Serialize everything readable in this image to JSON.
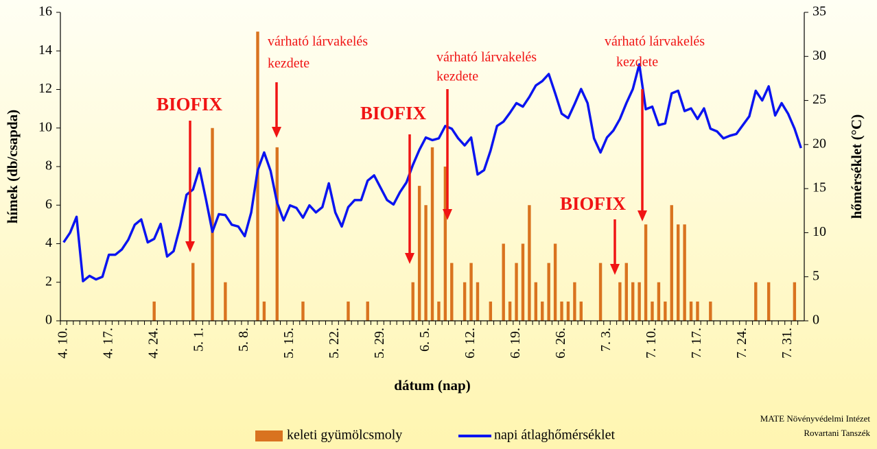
{
  "chart_data": {
    "type": "bar-line",
    "x_label": "dátum (nap)",
    "y_label": "hímek (db/csapda)",
    "y2_label": "hőmérséklet (°C)",
    "categories": [
      "4. 10.",
      null,
      null,
      null,
      null,
      null,
      null,
      "4. 17.",
      null,
      null,
      null,
      null,
      null,
      null,
      "4. 24.",
      null,
      null,
      null,
      null,
      null,
      null,
      "5. 1.",
      null,
      null,
      null,
      null,
      null,
      null,
      "5. 8.",
      null,
      null,
      null,
      null,
      null,
      null,
      "5. 15.",
      null,
      null,
      null,
      null,
      null,
      null,
      "5. 22.",
      null,
      null,
      null,
      null,
      null,
      null,
      "5. 29.",
      null,
      null,
      null,
      null,
      null,
      null,
      "6. 5.",
      null,
      null,
      null,
      null,
      null,
      null,
      "6. 12.",
      null,
      null,
      null,
      null,
      null,
      null,
      "6. 19.",
      null,
      null,
      null,
      null,
      null,
      null,
      "6. 26.",
      null,
      null,
      null,
      null,
      null,
      null,
      "7. 3.",
      null,
      null,
      null,
      null,
      null,
      null,
      "7. 10.",
      null,
      null,
      null,
      null,
      null,
      null,
      "7. 17.",
      null,
      null,
      null,
      null,
      null,
      null,
      "7. 24.",
      null,
      null,
      null,
      null,
      null,
      null,
      "7. 31.",
      null,
      null
    ],
    "series": [
      {
        "name": "keleti gyümölcsmoly",
        "type": "bar",
        "color": "#d9731f",
        "values": [
          0,
          0,
          0,
          0,
          0,
          0,
          0,
          0,
          0,
          0,
          0,
          0,
          0,
          0,
          1,
          0,
          0,
          0,
          0,
          0,
          3,
          0,
          0,
          10,
          0,
          2,
          0,
          0,
          0,
          0,
          15,
          1,
          0,
          9,
          0,
          0,
          0,
          1,
          0,
          0,
          0,
          0,
          0,
          0,
          1,
          0,
          0,
          1,
          0,
          0,
          0,
          0,
          0,
          0,
          2,
          7,
          6,
          9,
          1,
          8,
          3,
          0,
          2,
          3,
          2,
          0,
          1,
          0,
          4,
          1,
          3,
          4,
          6,
          2,
          1,
          3,
          4,
          1,
          1,
          2,
          1,
          0,
          0,
          3,
          0,
          0,
          2,
          3,
          2,
          2,
          5,
          1,
          2,
          1,
          6,
          5,
          5,
          1,
          1,
          0,
          1,
          0,
          0,
          0,
          0,
          0,
          0,
          2,
          0,
          2,
          0,
          0,
          0,
          2,
          0
        ]
      },
      {
        "name": "napi átlaghőmérséklet",
        "type": "line",
        "axis": "y2",
        "color": "#0a14f0",
        "values": [
          8.9,
          10,
          11.8,
          4.5,
          5.1,
          4.7,
          5,
          7.5,
          7.5,
          8.1,
          9.2,
          10.9,
          11.5,
          8.9,
          9.3,
          11,
          7.3,
          7.9,
          10.7,
          14.3,
          14.9,
          17.3,
          13.8,
          10.1,
          12.1,
          12,
          10.9,
          10.7,
          9.6,
          12.3,
          17.1,
          19.1,
          17,
          13.4,
          11.4,
          13.1,
          12.8,
          11.7,
          13.1,
          12.3,
          12.9,
          15.6,
          12.3,
          10.7,
          12.9,
          13.7,
          13.7,
          15.9,
          16.5,
          15.1,
          13.7,
          13.2,
          14.6,
          15.7,
          17.7,
          19.4,
          20.8,
          20.5,
          20.7,
          22.1,
          21.8,
          20.7,
          19.9,
          20.8,
          16.6,
          17.1,
          19.3,
          22.1,
          22.6,
          23.6,
          24.7,
          24.3,
          25.4,
          26.7,
          27.2,
          28,
          25.8,
          23.5,
          23,
          24.6,
          26.3,
          24.7,
          20.7,
          19.1,
          20.8,
          21.6,
          22.9,
          24.7,
          26.3,
          29.1,
          24,
          24.3,
          22.2,
          22.4,
          25.8,
          26.1,
          23.8,
          24.1,
          22.9,
          24.1,
          21.8,
          21.5,
          20.7,
          21,
          21.2,
          22.2,
          23.2,
          26.1,
          25,
          26.6,
          23.3,
          24.7,
          23.5,
          21.8,
          19.6
        ]
      }
    ],
    "ylim": [
      0,
      16
    ],
    "yticks": [
      0,
      2,
      4,
      6,
      8,
      10,
      12,
      14,
      16
    ],
    "y2lim": [
      0,
      35
    ],
    "y2ticks": [
      0,
      5,
      10,
      15,
      20,
      25,
      30,
      35
    ],
    "grid": false,
    "legend": "bottom",
    "annotations": [
      {
        "lines": [
          "BIOFIX"
        ]
      },
      {
        "lines": [
          "várható lárvakelés",
          "kezdete"
        ]
      },
      {
        "lines": [
          "BIOFIX"
        ]
      },
      {
        "lines": [
          "várható lárvakelés",
          "kezdete"
        ]
      },
      {
        "lines": [
          "BIOFIX"
        ]
      },
      {
        "lines": [
          "várható lárvakelés",
          "kezdete"
        ]
      }
    ],
    "source": [
      "MATE Növényvédelmi Intézet",
      "Rovartani Tanszék"
    ]
  }
}
